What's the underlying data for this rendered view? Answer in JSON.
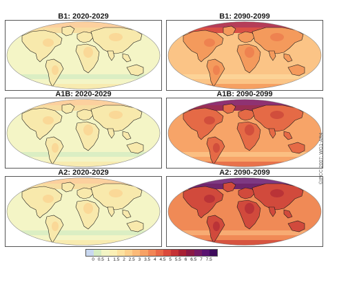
{
  "panels": [
    {
      "title": "B1: 2020-2029",
      "warming": "low"
    },
    {
      "title": "B1: 2090-2099",
      "warming": "medium"
    },
    {
      "title": "A1B: 2020-2029",
      "warming": "low"
    },
    {
      "title": "A1B: 2090-2099",
      "warming": "high"
    },
    {
      "title": "A2: 2020-2029",
      "warming": "low"
    },
    {
      "title": "A2: 2090-2099",
      "warming": "very-high"
    }
  ],
  "credit": "©IPCC 2007: WG1-AR4",
  "legend": {
    "labels": [
      "0",
      "0.5",
      "1",
      "1.5",
      "2",
      "2.5",
      "3",
      "3.5",
      "4",
      "4.5",
      "5",
      "5.5",
      "6",
      "6.5",
      "7",
      "7.5"
    ],
    "colors": [
      "#c9d8f0",
      "#d6ecc2",
      "#f3f5c5",
      "#fbf0b6",
      "#fde2a0",
      "#fcd08c",
      "#fbba78",
      "#f7a265",
      "#f28656",
      "#e96948",
      "#db4a3c",
      "#c53235",
      "#a82134",
      "#8a1a45",
      "#741a63",
      "#5a1470",
      "#3e0c5c"
    ]
  }
}
